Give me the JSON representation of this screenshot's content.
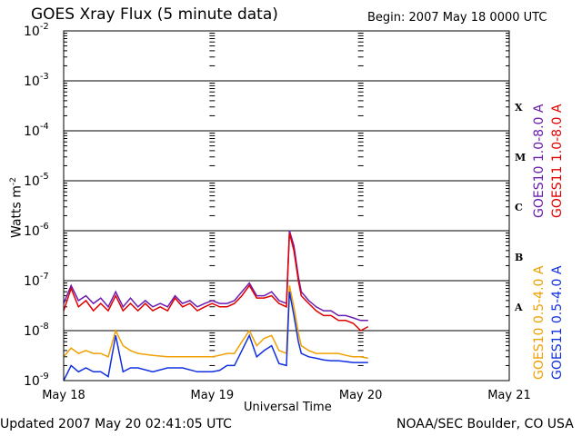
{
  "chart_data": {
    "type": "line",
    "title": "GOES Xray Flux (5 minute data)",
    "begin_label": "Begin:  2007 May 18 0000 UTC",
    "xlabel": "Universal Time",
    "ylabel_base": "Watts m",
    "ylabel_exp": "-2",
    "y_scale": "log",
    "ylim": [
      1e-09,
      0.01
    ],
    "y_ticks": [
      {
        "base": "10",
        "exp": "-2",
        "value": 0.01
      },
      {
        "base": "10",
        "exp": "-3",
        "value": 0.001
      },
      {
        "base": "10",
        "exp": "-4",
        "value": 0.0001
      },
      {
        "base": "10",
        "exp": "-5",
        "value": 1e-05
      },
      {
        "base": "10",
        "exp": "-6",
        "value": 1e-06
      },
      {
        "base": "10",
        "exp": "-7",
        "value": 1e-07
      },
      {
        "base": "10",
        "exp": "-8",
        "value": 1e-08
      },
      {
        "base": "10",
        "exp": "-9",
        "value": 1e-09
      }
    ],
    "xlim_days": [
      0,
      3
    ],
    "x_ticks": [
      {
        "label": "May 18",
        "day": 0
      },
      {
        "label": "May 19",
        "day": 1
      },
      {
        "label": "May 20",
        "day": 2
      },
      {
        "label": "May 21",
        "day": 3
      }
    ],
    "flare_classes": [
      {
        "label": "X",
        "value": 0.0003
      },
      {
        "label": "M",
        "value": 3e-05
      },
      {
        "label": "C",
        "value": 3e-06
      },
      {
        "label": "B",
        "value": 3e-07
      },
      {
        "label": "A",
        "value": 3e-08
      }
    ],
    "grid": "horizontal lines at each decade",
    "legend_placement": "right, vertical",
    "series": [
      {
        "name": "GOES10 1.0-8.0 A",
        "color": "#6a1bb0",
        "x_days": [
          0.0,
          0.05,
          0.1,
          0.15,
          0.2,
          0.25,
          0.3,
          0.35,
          0.4,
          0.45,
          0.5,
          0.55,
          0.6,
          0.65,
          0.7,
          0.75,
          0.8,
          0.85,
          0.9,
          0.95,
          1.0,
          1.05,
          1.1,
          1.15,
          1.2,
          1.25,
          1.3,
          1.35,
          1.4,
          1.45,
          1.5,
          1.52,
          1.55,
          1.58,
          1.6,
          1.65,
          1.7,
          1.75,
          1.8,
          1.85,
          1.9,
          1.95,
          2.0,
          2.05
        ],
        "y": [
          3.5e-08,
          8e-08,
          4e-08,
          5e-08,
          3.5e-08,
          4.5e-08,
          3e-08,
          6e-08,
          3e-08,
          4.5e-08,
          3e-08,
          4e-08,
          3e-08,
          3.5e-08,
          3e-08,
          5e-08,
          3.5e-08,
          4e-08,
          3e-08,
          3.5e-08,
          4e-08,
          3.5e-08,
          3.5e-08,
          4e-08,
          6e-08,
          9e-08,
          5e-08,
          5e-08,
          6e-08,
          4e-08,
          3.5e-08,
          1e-06,
          5e-07,
          1.2e-07,
          6e-08,
          4e-08,
          3e-08,
          2.5e-08,
          2.5e-08,
          2e-08,
          2e-08,
          1.8e-08,
          1.6e-08,
          1.6e-08
        ]
      },
      {
        "name": "GOES11 1.0-8.0 A",
        "color": "#e00000",
        "x_days": [
          0.0,
          0.05,
          0.1,
          0.15,
          0.2,
          0.25,
          0.3,
          0.35,
          0.4,
          0.45,
          0.5,
          0.55,
          0.6,
          0.65,
          0.7,
          0.75,
          0.8,
          0.85,
          0.9,
          0.95,
          1.0,
          1.05,
          1.1,
          1.15,
          1.2,
          1.25,
          1.3,
          1.35,
          1.4,
          1.45,
          1.5,
          1.52,
          1.55,
          1.58,
          1.6,
          1.65,
          1.7,
          1.75,
          1.8,
          1.85,
          1.9,
          1.95,
          2.0,
          2.05
        ],
        "y": [
          2.5e-08,
          7e-08,
          3e-08,
          4e-08,
          2.5e-08,
          3.5e-08,
          2.5e-08,
          5e-08,
          2.5e-08,
          3.5e-08,
          2.5e-08,
          3.5e-08,
          2.5e-08,
          3e-08,
          2.5e-08,
          4.5e-08,
          3e-08,
          3.5e-08,
          2.5e-08,
          3e-08,
          3.5e-08,
          3e-08,
          3e-08,
          3.5e-08,
          5e-08,
          8e-08,
          4.5e-08,
          4.5e-08,
          5e-08,
          3.5e-08,
          3e-08,
          9e-07,
          4e-07,
          1e-07,
          5e-08,
          3.5e-08,
          2.5e-08,
          2e-08,
          2e-08,
          1.6e-08,
          1.6e-08,
          1.4e-08,
          1e-08,
          1.2e-08
        ]
      },
      {
        "name": "GOES10 0.5-4.0 A",
        "color": "#f0a000",
        "x_days": [
          0.0,
          0.05,
          0.1,
          0.15,
          0.2,
          0.25,
          0.3,
          0.35,
          0.4,
          0.45,
          0.5,
          0.6,
          0.7,
          0.8,
          0.9,
          1.0,
          1.05,
          1.1,
          1.15,
          1.2,
          1.25,
          1.3,
          1.35,
          1.4,
          1.45,
          1.5,
          1.52,
          1.55,
          1.58,
          1.6,
          1.65,
          1.7,
          1.75,
          1.8,
          1.85,
          1.9,
          1.95,
          2.0,
          2.05
        ],
        "y": [
          3e-09,
          4.5e-09,
          3.5e-09,
          4e-09,
          3.5e-09,
          3.5e-09,
          3e-09,
          1e-08,
          5e-09,
          4e-09,
          3.5e-09,
          3.2e-09,
          3e-09,
          3e-09,
          3e-09,
          3e-09,
          3.2e-09,
          3.5e-09,
          3.5e-09,
          6e-09,
          1e-08,
          5e-09,
          7e-09,
          8e-09,
          4e-09,
          3.5e-09,
          8e-08,
          3e-08,
          9e-09,
          5e-09,
          4e-09,
          3.5e-09,
          3.5e-09,
          3.5e-09,
          3.5e-09,
          3.2e-09,
          3e-09,
          3e-09,
          2.8e-09
        ]
      },
      {
        "name": "GOES11 0.5-4.0 A",
        "color": "#1030e0",
        "x_days": [
          0.0,
          0.05,
          0.1,
          0.15,
          0.2,
          0.25,
          0.3,
          0.35,
          0.4,
          0.45,
          0.5,
          0.6,
          0.7,
          0.8,
          0.9,
          1.0,
          1.05,
          1.1,
          1.15,
          1.2,
          1.25,
          1.3,
          1.35,
          1.4,
          1.45,
          1.5,
          1.52,
          1.55,
          1.58,
          1.6,
          1.65,
          1.7,
          1.75,
          1.8,
          1.85,
          1.9,
          1.95,
          2.0,
          2.05
        ],
        "y": [
          1e-09,
          2e-09,
          1.5e-09,
          1.8e-09,
          1.5e-09,
          1.5e-09,
          1.2e-09,
          8e-09,
          1.5e-09,
          1.8e-09,
          1.8e-09,
          1.5e-09,
          1.8e-09,
          1.8e-09,
          1.5e-09,
          1.5e-09,
          1.6e-09,
          2e-09,
          2e-09,
          4e-09,
          8e-09,
          3e-09,
          4e-09,
          5e-09,
          2.2e-09,
          2e-09,
          6e-08,
          2e-08,
          6e-09,
          3.5e-09,
          3e-09,
          2.8e-09,
          2.6e-09,
          2.5e-09,
          2.5e-09,
          2.4e-09,
          2.3e-09,
          2.3e-09,
          2.3e-09
        ]
      }
    ]
  },
  "footer": {
    "updated": "Updated 2007 May 20 02:41:05 UTC",
    "credit": "NOAA/SEC Boulder, CO USA"
  }
}
